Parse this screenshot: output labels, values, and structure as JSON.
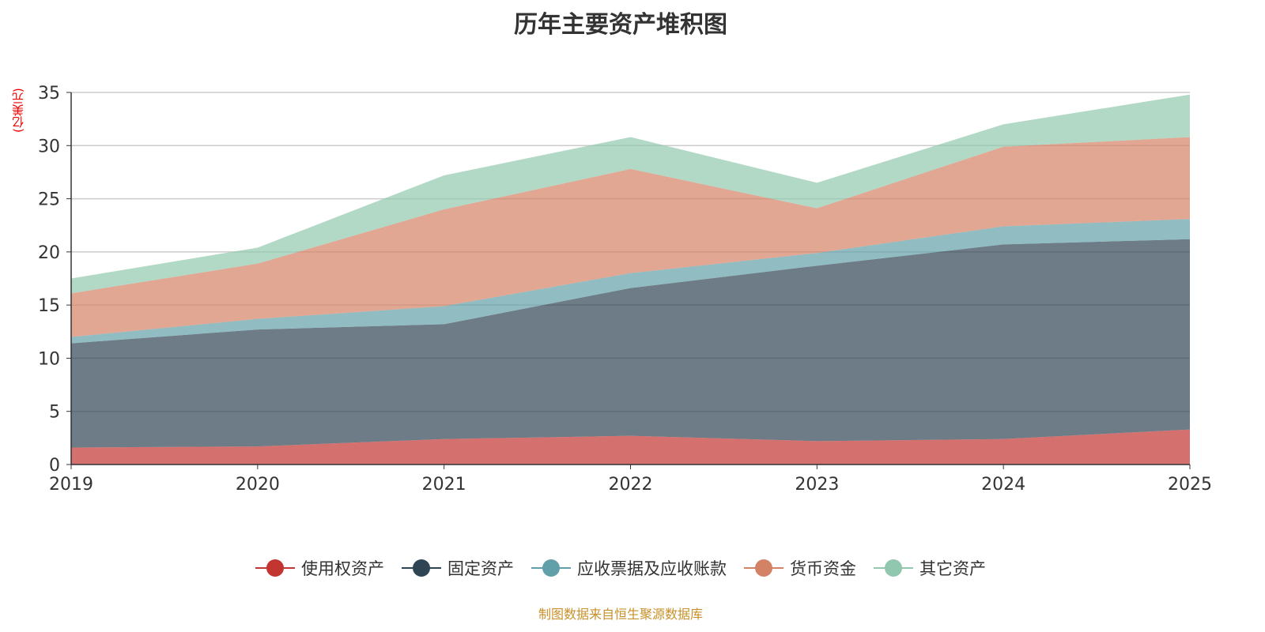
{
  "chart_data": {
    "type": "area",
    "stacked": true,
    "title": "历年主要资产堆积图",
    "ylabel": "(亿美元)",
    "xlabel": "",
    "ylim": [
      0,
      35
    ],
    "yticks": [
      "0",
      "5",
      "10",
      "15",
      "20",
      "25",
      "30",
      "35"
    ],
    "categories": [
      "2019",
      "2020",
      "2021",
      "2022",
      "2023",
      "2024",
      "2025"
    ],
    "grid": true,
    "legend_position": "bottom",
    "series": [
      {
        "name": "使用权资产",
        "color": "#c23531",
        "values": [
          1.6,
          1.7,
          2.4,
          2.7,
          2.2,
          2.4,
          3.3
        ]
      },
      {
        "name": "固定资产",
        "color": "#2f4554",
        "values": [
          9.8,
          11.0,
          10.8,
          13.9,
          16.5,
          18.3,
          17.9
        ]
      },
      {
        "name": "应收票据及应收账款",
        "color": "#61a0a8",
        "values": [
          0.6,
          1.0,
          1.7,
          1.4,
          1.2,
          1.7,
          1.9
        ]
      },
      {
        "name": "货币资金",
        "color": "#d48265",
        "values": [
          4.1,
          5.2,
          9.1,
          9.8,
          4.2,
          7.5,
          7.7
        ]
      },
      {
        "name": "其它资产",
        "color": "#91c7ae",
        "values": [
          1.4,
          1.5,
          3.2,
          3.0,
          2.4,
          2.1,
          4.0
        ]
      }
    ],
    "source": "制图数据来自恒生聚源数据库"
  }
}
